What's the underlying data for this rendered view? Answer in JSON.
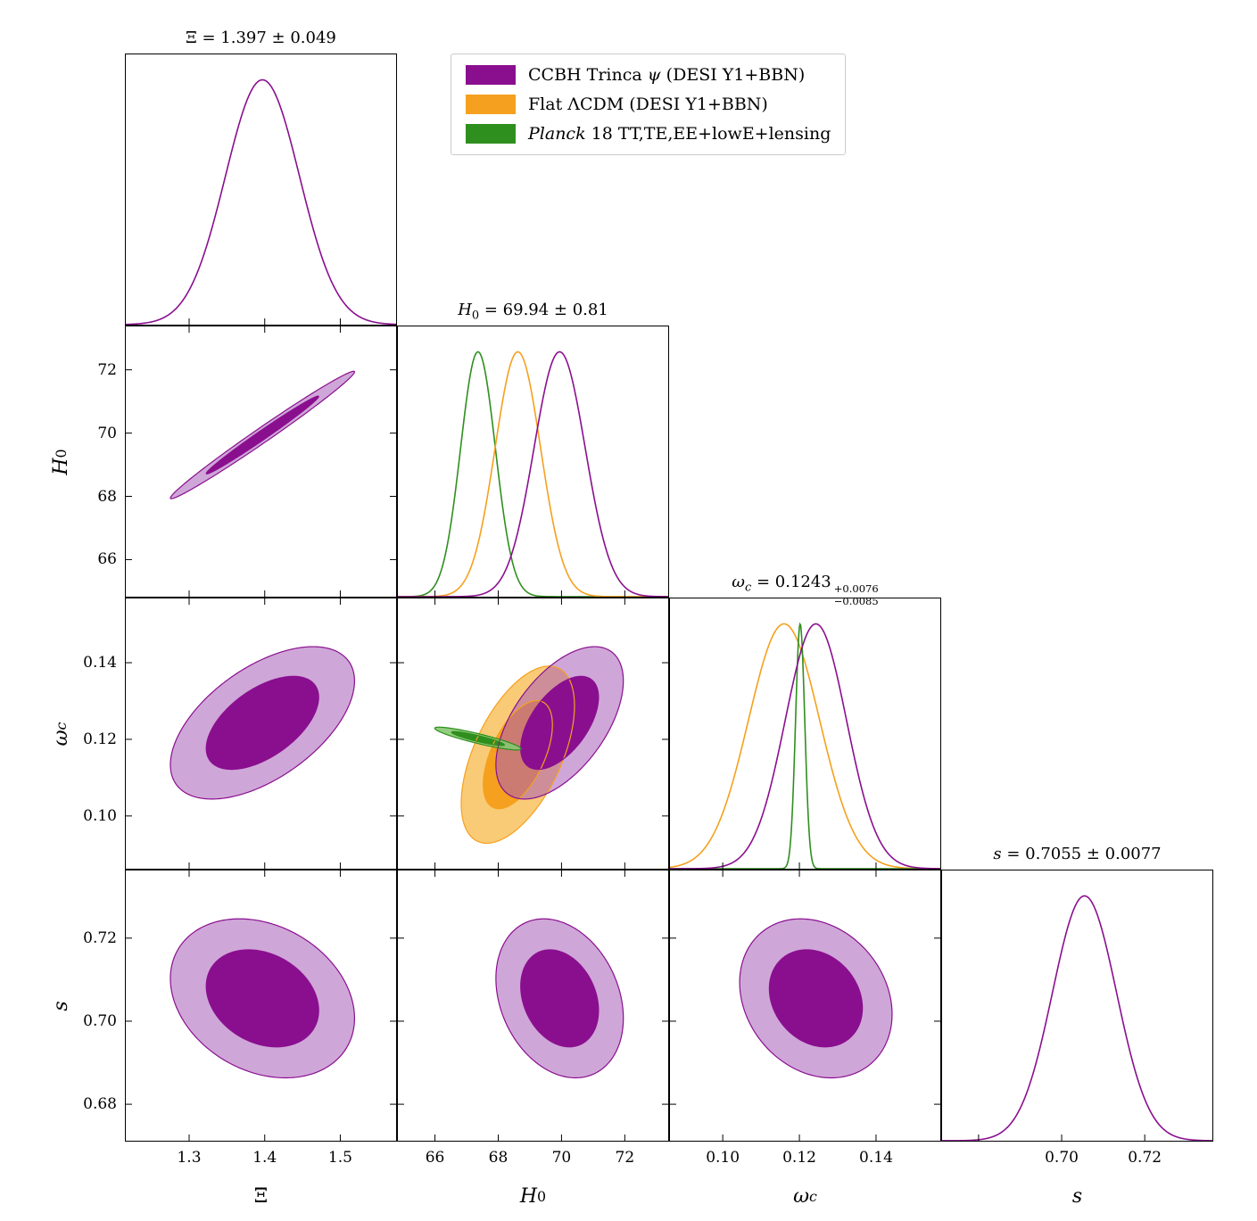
{
  "chart_data": {
    "type": "corner_contour_plot",
    "title": "",
    "grid": false,
    "legend_position": "top-right",
    "contour_levels_sigma": [
      2.486,
      1.517
    ],
    "parameters": [
      {
        "id": "Xi",
        "min": 1.215,
        "max": 1.575,
        "ticks": [
          1.3,
          1.4,
          1.5
        ],
        "tick_labels": [
          "1.3",
          "1.4",
          "1.5"
        ],
        "label_segments": [
          {
            "t": "Ξ"
          }
        ],
        "title_segments": [
          {
            "t": "Ξ = 1.397 ± 0.049"
          }
        ]
      },
      {
        "id": "H0",
        "min": 64.8,
        "max": 73.4,
        "ticks": [
          66,
          68,
          70,
          72
        ],
        "tick_labels": [
          "66",
          "68",
          "70",
          "72"
        ],
        "label_segments": [
          {
            "t": "H",
            "italic": true
          },
          {
            "t": "0",
            "sub": true
          }
        ],
        "title_segments": [
          {
            "t": "H",
            "italic": true
          },
          {
            "t": "0",
            "sub": true
          },
          {
            "t": " = 69.94 ± 0.81"
          }
        ]
      },
      {
        "id": "omegac",
        "min": 0.086,
        "max": 0.157,
        "ticks": [
          0.1,
          0.12,
          0.14
        ],
        "tick_labels": [
          "0.10",
          "0.12",
          "0.14"
        ],
        "label_segments": [
          {
            "t": "ω",
            "italic": true
          },
          {
            "t": "c",
            "sub": true,
            "italic": true
          }
        ],
        "title_segments": [
          {
            "t": "ω",
            "italic": true
          },
          {
            "t": "c",
            "sub": true,
            "italic": true
          },
          {
            "t": " = 0.1243"
          },
          {
            "stack": {
              "sup": "+0.0076",
              "sub": "−0.0085"
            }
          }
        ]
      },
      {
        "id": "s",
        "min": 0.671,
        "max": 0.7365,
        "ticks": [
          0.68,
          0.7,
          0.72
        ],
        "tick_labels": [
          "0.68",
          "0.70",
          "0.72"
        ],
        "x_tick_labels": [
          "",
          "0.70",
          "0.72"
        ],
        "label_segments": [
          {
            "t": "s",
            "italic": true
          }
        ],
        "title_segments": [
          {
            "t": "s",
            "italic": true
          },
          {
            "t": " = 0.7055 ± 0.0077"
          }
        ]
      }
    ],
    "datasets": [
      {
        "id": "ccbh",
        "color": "#8a0f8f",
        "light": "#a85cb8",
        "light_alpha": 0.55,
        "label_segments": [
          {
            "t": "CCBH Trinca "
          },
          {
            "t": "ψ",
            "italic": true
          },
          {
            "t": " (DESI Y1+BBN)"
          }
        ],
        "means": {
          "Xi": 1.397,
          "H0": 69.94,
          "omegac": 0.1243,
          "s": 0.7055
        },
        "sigmas": {
          "Xi": 0.049,
          "H0": 0.81,
          "omegac": 0.008,
          "s": 0.0077
        }
      },
      {
        "id": "lcdm",
        "color": "#f5a01e",
        "light": "#f9c25e",
        "light_alpha": 0.85,
        "label_segments": [
          {
            "t": "Flat ΛCDM (DESI Y1+BBN)"
          }
        ],
        "means": {
          "H0": 68.62,
          "omegac": 0.116
        },
        "sigmas": {
          "H0": 0.72,
          "omegac": 0.0093
        }
      },
      {
        "id": "planck",
        "color": "#2f8f1e",
        "light": "#86c872",
        "light_alpha": 0.9,
        "label_segments": [
          {
            "t": "Planck",
            "italic": true
          },
          {
            "t": " 18 TT,TE,EE+lowE+lensing"
          }
        ],
        "means": {
          "H0": 67.36,
          "omegac": 0.1202
        },
        "sigmas": {
          "H0": 0.55,
          "omegac": 0.0012
        }
      }
    ],
    "panels_1d": [
      {
        "param": "Xi",
        "curves": [
          "ccbh"
        ]
      },
      {
        "param": "H0",
        "curves": [
          "planck",
          "lcdm",
          "ccbh"
        ]
      },
      {
        "param": "omegac",
        "curves": [
          "lcdm",
          "planck",
          "ccbh"
        ]
      },
      {
        "param": "s",
        "curves": [
          "ccbh"
        ]
      }
    ],
    "panels_2d": [
      {
        "x": "Xi",
        "y": "H0",
        "contours": [
          {
            "dataset": "ccbh",
            "rho": 0.99
          }
        ]
      },
      {
        "x": "Xi",
        "y": "omegac",
        "contours": [
          {
            "dataset": "ccbh",
            "rho": 0.55
          }
        ]
      },
      {
        "x": "H0",
        "y": "omegac",
        "contours": [
          {
            "dataset": "lcdm",
            "rho": 0.55
          },
          {
            "dataset": "ccbh",
            "rho": 0.55
          },
          {
            "dataset": "planck",
            "rho": -0.9
          }
        ]
      },
      {
        "x": "Xi",
        "y": "s",
        "contours": [
          {
            "dataset": "ccbh",
            "rho": -0.25
          }
        ]
      },
      {
        "x": "H0",
        "y": "s",
        "contours": [
          {
            "dataset": "ccbh",
            "rho": -0.25
          }
        ]
      },
      {
        "x": "omegac",
        "y": "s",
        "contours": [
          {
            "dataset": "ccbh",
            "rho": -0.2
          }
        ]
      }
    ]
  }
}
